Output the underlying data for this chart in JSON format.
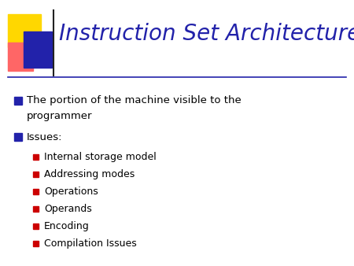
{
  "title": "Instruction Set Architecture",
  "title_color": "#2222AA",
  "title_fontsize": 20,
  "background_color": "#FFFFFF",
  "bullet_color": "#2222AA",
  "sub_bullet_color": "#CC0000",
  "text_color": "#000000",
  "bullet_item1_line1": "The portion of the machine visible to the",
  "bullet_item1_line2": "programmer",
  "bullet_item2": "Issues:",
  "sub_bullet_items": [
    "Internal storage model",
    "Addressing modes",
    "Operations",
    "Operands",
    "Encoding",
    "Compilation Issues"
  ],
  "header_line_color": "#2222AA",
  "logo_yellow": "#FFD700",
  "logo_red": "#FF6666",
  "logo_blue": "#2222AA",
  "logo_dark": "#222222"
}
